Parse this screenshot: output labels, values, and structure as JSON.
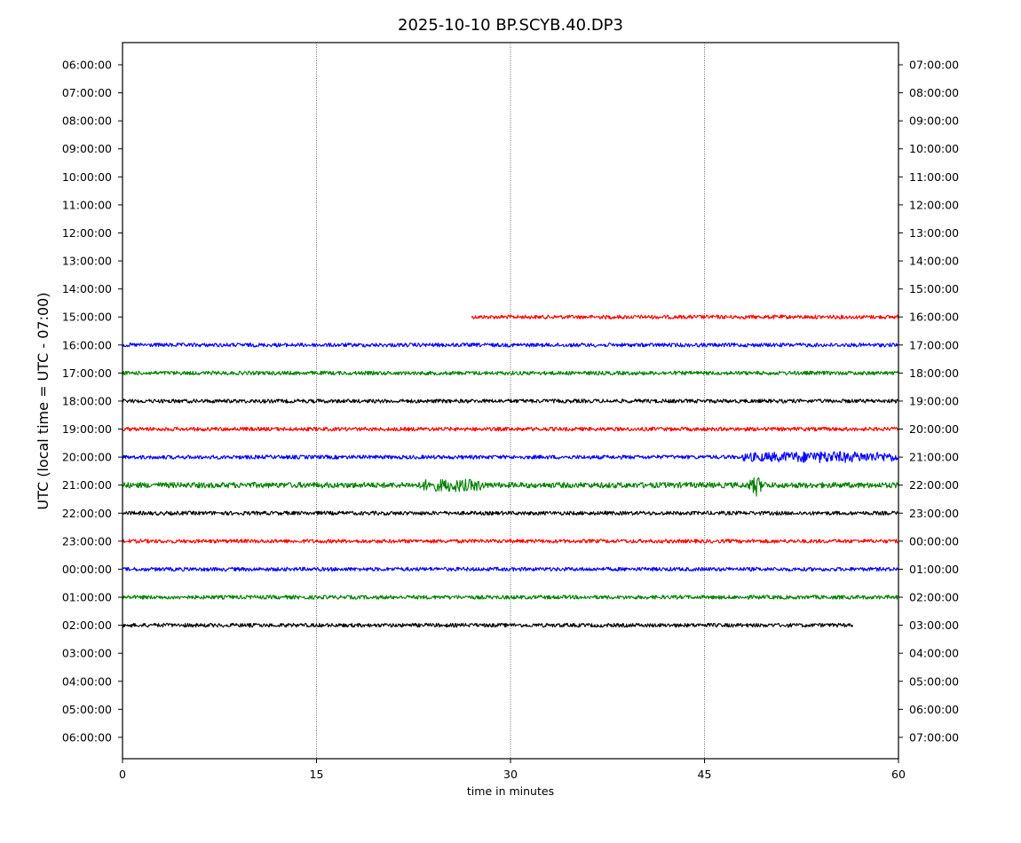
{
  "chart_data": {
    "type": "line",
    "title": "2025-10-10 BP.SCYB.40.DP3",
    "xlabel": "time in minutes",
    "ylabel": "UTC (local time = UTC - 07:00)",
    "xlim": [
      0,
      60
    ],
    "x_ticks": [
      "0",
      "15",
      "30",
      "45",
      "60"
    ],
    "x_tick_values": [
      0,
      15,
      30,
      45,
      60
    ],
    "grid": "vertical dotted lines at x ticks",
    "left_tick_labels": [
      "06:00:00",
      "07:00:00",
      "08:00:00",
      "09:00:00",
      "10:00:00",
      "11:00:00",
      "12:00:00",
      "13:00:00",
      "14:00:00",
      "15:00:00",
      "16:00:00",
      "17:00:00",
      "18:00:00",
      "19:00:00",
      "20:00:00",
      "21:00:00",
      "22:00:00",
      "23:00:00",
      "00:00:00",
      "01:00:00",
      "02:00:00",
      "03:00:00",
      "04:00:00",
      "05:00:00",
      "06:00:00"
    ],
    "right_tick_labels": [
      "07:00:00",
      "08:00:00",
      "09:00:00",
      "10:00:00",
      "11:00:00",
      "12:00:00",
      "13:00:00",
      "14:00:00",
      "15:00:00",
      "16:00:00",
      "17:00:00",
      "18:00:00",
      "19:00:00",
      "20:00:00",
      "21:00:00",
      "22:00:00",
      "23:00:00",
      "00:00:00",
      "01:00:00",
      "02:00:00",
      "03:00:00",
      "04:00:00",
      "05:00:00",
      "06:00:00",
      "07:00:00"
    ],
    "series": [
      {
        "hour": "15:00:00",
        "color": "#ff0000",
        "x_start": 27,
        "x_end": 60,
        "noise": "low",
        "events": []
      },
      {
        "hour": "16:00:00",
        "color": "#0000ff",
        "x_start": 0,
        "x_end": 60,
        "noise": "low",
        "events": []
      },
      {
        "hour": "17:00:00",
        "color": "#008000",
        "x_start": 0,
        "x_end": 60,
        "noise": "low",
        "events": []
      },
      {
        "hour": "18:00:00",
        "color": "#000000",
        "x_start": 0,
        "x_end": 60,
        "noise": "low",
        "events": []
      },
      {
        "hour": "19:00:00",
        "color": "#ff0000",
        "x_start": 0,
        "x_end": 60,
        "noise": "low",
        "events": []
      },
      {
        "hour": "20:00:00",
        "color": "#0000ff",
        "x_start": 0,
        "x_end": 60,
        "noise": "low",
        "events": [
          {
            "x_start": 48,
            "x_end": 60,
            "amplitude": "moderate"
          }
        ]
      },
      {
        "hour": "21:00:00",
        "color": "#008000",
        "x_start": 0,
        "x_end": 60,
        "noise": "medium",
        "events": [
          {
            "x_start": 23,
            "x_end": 28,
            "amplitude": "moderate"
          },
          {
            "x": 49,
            "amplitude": "spike"
          }
        ]
      },
      {
        "hour": "22:00:00",
        "color": "#000000",
        "x_start": 0,
        "x_end": 60,
        "noise": "low",
        "events": []
      },
      {
        "hour": "23:00:00",
        "color": "#ff0000",
        "x_start": 0,
        "x_end": 60,
        "noise": "low",
        "events": []
      },
      {
        "hour": "00:00:00",
        "color": "#0000ff",
        "x_start": 0,
        "x_end": 60,
        "noise": "low",
        "events": []
      },
      {
        "hour": "01:00:00",
        "color": "#008000",
        "x_start": 0,
        "x_end": 60,
        "noise": "low",
        "events": []
      },
      {
        "hour": "02:00:00",
        "color": "#000000",
        "x_start": 0,
        "x_end": 56.5,
        "noise": "low",
        "events": []
      }
    ]
  }
}
